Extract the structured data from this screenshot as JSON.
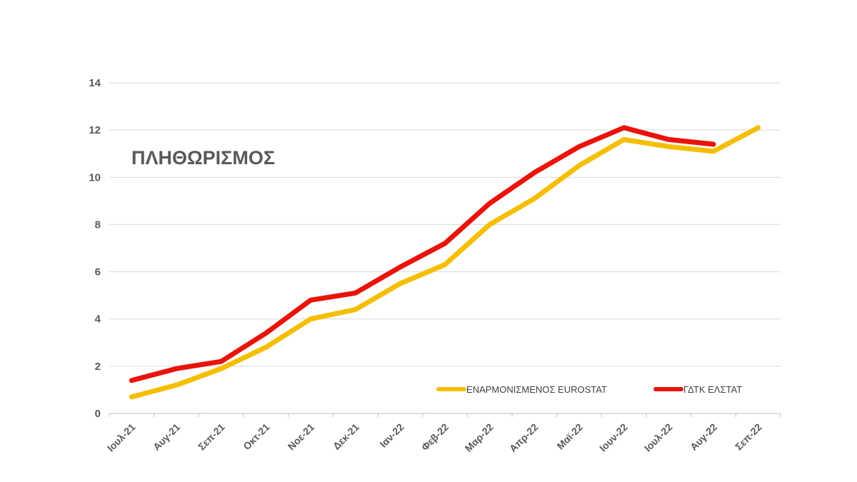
{
  "chart_data": {
    "type": "line",
    "title": "ΠΛΗΘΩΡΙΣΜΟΣ",
    "xlabel": "",
    "ylabel": "",
    "categories": [
      "Ιουλ-21",
      "Αυγ-21",
      "Σεπ-21",
      "Οκτ-21",
      "Νοε-21",
      "Δεκ-21",
      "Ιαν-22",
      "Φεβ-22",
      "Μαρ-22",
      "Απρ-22",
      "Μαϊ-22",
      "Ιουν-22",
      "Ιουλ-22",
      "Αυγ-22",
      "Σεπ-22"
    ],
    "ylim": [
      0,
      14
    ],
    "yticks": [
      "0",
      "2",
      "4",
      "6",
      "8",
      "10",
      "12",
      "14"
    ],
    "grid": true,
    "legend_position": "bottom-right",
    "series": [
      {
        "name": "ΕΝΑΡΜΟΝΙΣΜΕΝΟΣ EUROSTAT",
        "color": "#F5BE00",
        "values": [
          0.7,
          1.2,
          1.9,
          2.8,
          4.0,
          4.4,
          5.5,
          6.3,
          8.0,
          9.1,
          10.5,
          11.6,
          11.3,
          11.1,
          12.1
        ]
      },
      {
        "name": "ΓΔΤΚ ΕΛΣΤΑΤ",
        "color": "#E8140C",
        "values": [
          1.4,
          1.9,
          2.2,
          3.4,
          4.8,
          5.1,
          6.2,
          7.2,
          8.9,
          10.2,
          11.3,
          12.1,
          11.6,
          11.4,
          null
        ]
      }
    ]
  }
}
